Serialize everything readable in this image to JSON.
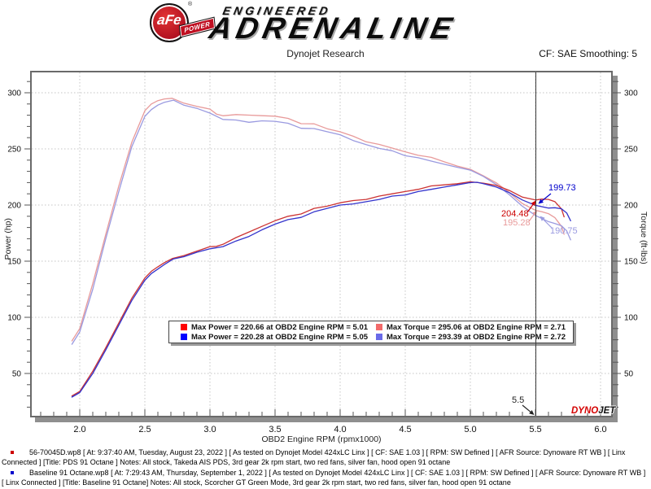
{
  "header": {
    "brand": {
      "circle_text": "aFe",
      "registered_mark": "®",
      "banner_text": "POWER",
      "line1": "ENGINEERED",
      "line2": "ADRENALINE"
    },
    "subtitle": "Dynojet Research",
    "cf_label": "CF: SAE Smoothing: 5"
  },
  "chart_data": {
    "type": "line",
    "xlabel": "OBD2 Engine RPM (rpmx1000)",
    "ylabel_left": "Power (hp)",
    "ylabel_right": "Torque (ft-lbs)",
    "xlim": [
      1.6,
      6.09
    ],
    "ylim": [
      11,
      319
    ],
    "x_ticks": [
      2.0,
      2.5,
      3.0,
      3.5,
      4.0,
      4.5,
      5.0,
      5.5,
      6.0
    ],
    "y_ticks": [
      50,
      100,
      150,
      200,
      250,
      300
    ],
    "x_minor_step": 0.1,
    "y_minor_step": 10,
    "grid": "dotted",
    "cursor_rpm": 5.5,
    "series": [
      {
        "name": "torque-pds-91-octane",
        "color": "#e89a9a",
        "axis": "right",
        "points": [
          [
            1.94,
            79
          ],
          [
            2.0,
            90
          ],
          [
            2.1,
            130
          ],
          [
            2.2,
            174
          ],
          [
            2.3,
            217
          ],
          [
            2.4,
            256
          ],
          [
            2.5,
            284
          ],
          [
            2.55,
            290
          ],
          [
            2.6,
            293
          ],
          [
            2.65,
            294.5
          ],
          [
            2.71,
            295.1
          ],
          [
            2.8,
            290.7
          ],
          [
            2.9,
            287.9
          ],
          [
            3.0,
            285.4
          ],
          [
            3.05,
            281
          ],
          [
            3.1,
            279.5
          ],
          [
            3.2,
            280.6
          ],
          [
            3.3,
            280.1
          ],
          [
            3.4,
            279.6
          ],
          [
            3.5,
            279.1
          ],
          [
            3.6,
            277.2
          ],
          [
            3.7,
            272.5
          ],
          [
            3.8,
            272.3
          ],
          [
            3.9,
            268
          ],
          [
            4.0,
            265.2
          ],
          [
            4.1,
            261.3
          ],
          [
            4.2,
            256.3
          ],
          [
            4.3,
            254
          ],
          [
            4.4,
            250.7
          ],
          [
            4.5,
            247.4
          ],
          [
            4.6,
            244.3
          ],
          [
            4.7,
            242.5
          ],
          [
            4.8,
            238.5
          ],
          [
            4.9,
            234.7
          ],
          [
            5.0,
            231.8
          ],
          [
            5.1,
            226
          ],
          [
            5.2,
            219.7
          ],
          [
            5.3,
            211.1
          ],
          [
            5.4,
            201.3
          ],
          [
            5.5,
            195.3
          ],
          [
            5.55,
            194
          ],
          [
            5.6,
            192.3
          ],
          [
            5.65,
            188.7
          ],
          [
            5.7,
            181
          ],
          [
            5.72,
            174
          ]
        ]
      },
      {
        "name": "torque-baseline-91-octane",
        "color": "#9a9ae0",
        "axis": "right",
        "points": [
          [
            1.94,
            76
          ],
          [
            2.0,
            87
          ],
          [
            2.1,
            125
          ],
          [
            2.2,
            170
          ],
          [
            2.3,
            212
          ],
          [
            2.4,
            252
          ],
          [
            2.5,
            279
          ],
          [
            2.55,
            285
          ],
          [
            2.6,
            289
          ],
          [
            2.65,
            291.5
          ],
          [
            2.72,
            293.4
          ],
          [
            2.8,
            288.9
          ],
          [
            2.9,
            286.1
          ],
          [
            3.0,
            281.9
          ],
          [
            3.1,
            276.2
          ],
          [
            3.2,
            275.7
          ],
          [
            3.3,
            273.7
          ],
          [
            3.4,
            275
          ],
          [
            3.5,
            274.6
          ],
          [
            3.6,
            272.8
          ],
          [
            3.7,
            268.3
          ],
          [
            3.8,
            268.1
          ],
          [
            3.9,
            265.3
          ],
          [
            4.0,
            262.6
          ],
          [
            4.1,
            257.5
          ],
          [
            4.2,
            253.8
          ],
          [
            4.3,
            250.4
          ],
          [
            4.4,
            248.3
          ],
          [
            4.5,
            243.9
          ],
          [
            4.6,
            242.1
          ],
          [
            4.7,
            239.1
          ],
          [
            4.8,
            236.3
          ],
          [
            4.9,
            233.6
          ],
          [
            5.0,
            231.1
          ],
          [
            5.1,
            225.5
          ],
          [
            5.2,
            218.2
          ],
          [
            5.3,
            209.1
          ],
          [
            5.4,
            198.9
          ],
          [
            5.5,
            190.7
          ],
          [
            5.6,
            185.2
          ],
          [
            5.65,
            183.5
          ],
          [
            5.7,
            181.5
          ],
          [
            5.74,
            177
          ],
          [
            5.77,
            169
          ]
        ]
      },
      {
        "name": "power-pds-91-octane",
        "color": "#cc3333",
        "axis": "left",
        "points": [
          [
            1.94,
            30
          ],
          [
            2.0,
            34
          ],
          [
            2.1,
            52
          ],
          [
            2.2,
            73
          ],
          [
            2.3,
            95
          ],
          [
            2.4,
            117
          ],
          [
            2.5,
            135
          ],
          [
            2.55,
            141
          ],
          [
            2.6,
            145
          ],
          [
            2.65,
            148.7
          ],
          [
            2.71,
            152.3
          ],
          [
            2.8,
            155
          ],
          [
            2.9,
            159
          ],
          [
            3.0,
            163
          ],
          [
            3.05,
            163.2
          ],
          [
            3.1,
            165
          ],
          [
            3.2,
            171
          ],
          [
            3.3,
            176
          ],
          [
            3.4,
            181
          ],
          [
            3.5,
            186
          ],
          [
            3.6,
            190
          ],
          [
            3.7,
            192
          ],
          [
            3.8,
            197
          ],
          [
            3.9,
            199
          ],
          [
            4.0,
            202
          ],
          [
            4.1,
            204
          ],
          [
            4.2,
            205
          ],
          [
            4.3,
            208
          ],
          [
            4.4,
            210
          ],
          [
            4.5,
            212
          ],
          [
            4.6,
            214
          ],
          [
            4.7,
            217
          ],
          [
            4.8,
            218
          ],
          [
            4.9,
            219
          ],
          [
            5.0,
            220.7
          ],
          [
            5.1,
            219.5
          ],
          [
            5.2,
            217.5
          ],
          [
            5.3,
            213
          ],
          [
            5.4,
            207
          ],
          [
            5.5,
            204.5
          ],
          [
            5.55,
            205.3
          ],
          [
            5.6,
            205
          ],
          [
            5.65,
            203
          ],
          [
            5.7,
            196.5
          ],
          [
            5.72,
            189.5
          ]
        ]
      },
      {
        "name": "power-baseline-91-octane",
        "color": "#3333cc",
        "axis": "left",
        "points": [
          [
            1.94,
            29
          ],
          [
            2.0,
            33
          ],
          [
            2.1,
            50
          ],
          [
            2.2,
            71
          ],
          [
            2.3,
            93
          ],
          [
            2.4,
            115
          ],
          [
            2.5,
            133
          ],
          [
            2.55,
            139
          ],
          [
            2.6,
            143
          ],
          [
            2.65,
            147
          ],
          [
            2.72,
            152
          ],
          [
            2.8,
            154
          ],
          [
            2.9,
            158
          ],
          [
            3.0,
            161
          ],
          [
            3.1,
            163
          ],
          [
            3.2,
            168
          ],
          [
            3.3,
            172
          ],
          [
            3.4,
            178
          ],
          [
            3.5,
            183
          ],
          [
            3.6,
            187
          ],
          [
            3.7,
            189
          ],
          [
            3.8,
            194
          ],
          [
            3.9,
            197
          ],
          [
            4.0,
            200
          ],
          [
            4.1,
            201
          ],
          [
            4.2,
            203
          ],
          [
            4.3,
            205
          ],
          [
            4.4,
            208
          ],
          [
            4.5,
            209
          ],
          [
            4.6,
            212
          ],
          [
            4.7,
            214
          ],
          [
            4.8,
            216
          ],
          [
            4.9,
            218
          ],
          [
            5.0,
            220
          ],
          [
            5.05,
            220.3
          ],
          [
            5.1,
            219
          ],
          [
            5.2,
            216
          ],
          [
            5.3,
            211
          ],
          [
            5.4,
            204.5
          ],
          [
            5.5,
            199.7
          ],
          [
            5.6,
            197.3
          ],
          [
            5.65,
            197.6
          ],
          [
            5.7,
            196.7
          ],
          [
            5.74,
            193
          ],
          [
            5.77,
            186
          ]
        ]
      }
    ],
    "legend": {
      "position": "bottom-center",
      "items": [
        {
          "color": "#ff0000",
          "text": "Max Power = 220.66 at OBD2 Engine RPM = 5.01"
        },
        {
          "color": "#f26a6a",
          "text": "Max Torque = 295.06 at OBD2 Engine RPM = 2.71"
        },
        {
          "color": "#0000ff",
          "text": "Max Power = 220.28 at OBD2 Engine RPM = 5.05"
        },
        {
          "color": "#6a6ae8",
          "text": "Max Torque = 293.39 at OBD2 Engine RPM = 2.72"
        }
      ]
    },
    "annotations": [
      {
        "name": "cursor-value-power-red",
        "text": "204.48",
        "color": "#cc0000",
        "label": [
          616,
          258
        ],
        "tail": [
          648,
          261
        ],
        "tip": [
          658.5,
          246.5
        ]
      },
      {
        "name": "cursor-value-power-blue",
        "text": "199.73",
        "color": "#0000cc",
        "label": [
          674,
          226
        ],
        "tail": [
          677,
          238
        ],
        "tip": [
          661.5,
          250.5
        ]
      },
      {
        "name": "cursor-value-torque-pink",
        "text": "195.28",
        "color": "#e89a9a",
        "label": [
          618,
          269
        ],
        "tail": [
          650,
          272
        ],
        "tip": [
          660,
          258.5
        ]
      },
      {
        "name": "cursor-value-torque-blue",
        "text": "190.75",
        "color": "#9a9ae0",
        "label": [
          676,
          279
        ],
        "tail": [
          678,
          280
        ],
        "tip": [
          663.5,
          265.5
        ]
      },
      {
        "name": "cursor-rpm-label",
        "text": "5.5",
        "color": "#222222",
        "label": [
          629,
          487
        ],
        "tail": [
          642,
          498
        ],
        "tip": [
          656.5,
          510
        ]
      }
    ],
    "watermark": {
      "dyno": "DYNO",
      "jet": "JET"
    }
  },
  "footer": {
    "entries": [
      {
        "bullet_color": "#cc0000",
        "text": "56-70045D.wp8 [ At: 9:37:40 AM, Tuesday, August 23, 2022 ] [ As tested on Dynojet Model 424xLC Linx ] [ CF: SAE 1.03 ] [ RPM: SW Defined ] [ AFR Source: Dynoware RT WB ] [ Linx Connected ] [Title: PDS 91 Octane ]  Notes: All stock, Takeda AIS PDS, 3rd gear 2k rpm start, two red fans, silver fan, hood open 91 octane"
      },
      {
        "bullet_color": "#0000cc",
        "text": "Baseline 91 Octane.wp8 [ At: 7:29:43 AM, Thursday, September 1, 2022 ] [ As tested on Dynojet Model 424xLC Linx ] [ CF: SAE 1.03 ] [ RPM: SW Defined ] [ AFR Source: Dynoware RT WB ] [ Linx Connected ] [Title: Baseline 91 Octane]  Notes: All stock, Scorcher GT Green Mode, 3rd gear 2k rpm start, two red fans, silver fan, hood open 91 octane"
      }
    ]
  }
}
